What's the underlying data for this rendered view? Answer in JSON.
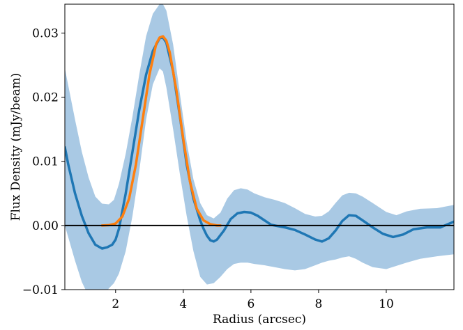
{
  "chart_data": {
    "type": "line",
    "xlabel": "Radius (arcsec)",
    "ylabel": "Flux Density (mJy/beam)",
    "xlim": [
      0.5,
      12.0
    ],
    "ylim": [
      -0.01,
      0.0345
    ],
    "xticks": [
      2,
      4,
      6,
      8,
      10
    ],
    "xtick_labels": [
      "2",
      "4",
      "6",
      "8",
      "10"
    ],
    "yticks": [
      -0.01,
      0.0,
      0.01,
      0.02,
      0.03
    ],
    "ytick_labels": [
      "−0.01",
      "0.00",
      "0.01",
      "0.02",
      "0.03"
    ],
    "grid": false,
    "legend": "none",
    "series": [
      {
        "kind": "band",
        "color": "#a9c9e4",
        "x": [
          0.5,
          0.8,
          1.0,
          1.2,
          1.4,
          1.6,
          1.8,
          1.95,
          2.1,
          2.3,
          2.5,
          2.7,
          2.9,
          3.1,
          3.3,
          3.4,
          3.5,
          3.7,
          3.9,
          4.1,
          4.3,
          4.5,
          4.7,
          4.9,
          5.1,
          5.3,
          5.5,
          5.7,
          5.9,
          6.1,
          6.4,
          6.7,
          7.0,
          7.3,
          7.6,
          7.9,
          8.1,
          8.3,
          8.5,
          8.7,
          8.9,
          9.1,
          9.3,
          9.6,
          10.0,
          10.3,
          10.6,
          11.0,
          11.5,
          12.0
        ],
        "upper": [
          0.0245,
          0.0165,
          0.0115,
          0.0075,
          0.0045,
          0.0034,
          0.0033,
          0.004,
          0.0065,
          0.0112,
          0.017,
          0.0235,
          0.0295,
          0.033,
          0.0345,
          0.0345,
          0.0335,
          0.0282,
          0.0205,
          0.013,
          0.0072,
          0.0035,
          0.0016,
          0.0011,
          0.002,
          0.0042,
          0.0055,
          0.0058,
          0.0056,
          0.005,
          0.0044,
          0.004,
          0.0035,
          0.0027,
          0.0018,
          0.0014,
          0.0015,
          0.0022,
          0.0035,
          0.0047,
          0.0051,
          0.005,
          0.0045,
          0.0035,
          0.0021,
          0.0016,
          0.0022,
          0.0026,
          0.0027,
          0.0032
        ],
        "lower": [
          0.0,
          -0.0055,
          -0.0088,
          -0.011,
          -0.0116,
          -0.0112,
          -0.0098,
          -0.009,
          -0.0075,
          -0.004,
          0.0015,
          0.0085,
          0.0165,
          0.022,
          0.0245,
          0.024,
          0.0215,
          0.015,
          0.008,
          0.0015,
          -0.004,
          -0.008,
          -0.0092,
          -0.009,
          -0.008,
          -0.0068,
          -0.006,
          -0.0058,
          -0.0058,
          -0.006,
          -0.0062,
          -0.0065,
          -0.0068,
          -0.007,
          -0.0068,
          -0.0062,
          -0.0058,
          -0.0055,
          -0.0053,
          -0.005,
          -0.0048,
          -0.0052,
          -0.0058,
          -0.0065,
          -0.0068,
          -0.0063,
          -0.0058,
          -0.0052,
          -0.0048,
          -0.0045
        ]
      },
      {
        "kind": "line",
        "color": "#1f77b4",
        "x": [
          0.5,
          0.6,
          0.8,
          1.0,
          1.2,
          1.4,
          1.6,
          1.75,
          1.9,
          2.0,
          2.1,
          2.3,
          2.5,
          2.7,
          2.9,
          3.1,
          3.3,
          3.4,
          3.5,
          3.7,
          3.9,
          4.1,
          4.3,
          4.5,
          4.6,
          4.7,
          4.8,
          4.9,
          5.0,
          5.2,
          5.4,
          5.6,
          5.8,
          6.0,
          6.2,
          6.4,
          6.6,
          6.8,
          7.0,
          7.3,
          7.6,
          7.9,
          8.1,
          8.3,
          8.5,
          8.7,
          8.9,
          9.1,
          9.3,
          9.6,
          9.9,
          10.2,
          10.5,
          10.8,
          11.2,
          11.6,
          12.0
        ],
        "values": [
          0.0122,
          0.0095,
          0.005,
          0.0015,
          -0.0012,
          -0.003,
          -0.0036,
          -0.0034,
          -0.003,
          -0.0022,
          -0.0005,
          0.005,
          0.0115,
          0.018,
          0.0235,
          0.0272,
          0.0292,
          0.0293,
          0.0285,
          0.024,
          0.017,
          0.0095,
          0.0042,
          0.0008,
          -0.0005,
          -0.0016,
          -0.0023,
          -0.0025,
          -0.0022,
          -0.0008,
          0.001,
          0.0019,
          0.0021,
          0.002,
          0.0015,
          0.0008,
          0.0001,
          -0.0001,
          -0.0003,
          -0.0007,
          -0.0014,
          -0.0022,
          -0.0025,
          -0.002,
          -0.0008,
          0.0007,
          0.0016,
          0.0015,
          0.0008,
          -0.0003,
          -0.0013,
          -0.0018,
          -0.0014,
          -0.0006,
          -0.0003,
          -0.0003,
          0.0006
        ]
      },
      {
        "kind": "line",
        "color": "#ff7f0e",
        "x": [
          1.6,
          1.8,
          2.0,
          2.2,
          2.4,
          2.6,
          2.8,
          3.0,
          3.2,
          3.3,
          3.4,
          3.5,
          3.6,
          3.8,
          4.0,
          4.2,
          4.4,
          4.6,
          4.8,
          5.0,
          5.1
        ],
        "values": [
          0.0,
          5e-05,
          0.0003,
          0.0014,
          0.0042,
          0.0095,
          0.0165,
          0.0235,
          0.0283,
          0.0293,
          0.0295,
          0.0288,
          0.027,
          0.021,
          0.0135,
          0.0068,
          0.0026,
          0.0008,
          0.0002,
          0.0,
          0.0
        ]
      },
      {
        "kind": "hline",
        "color": "#000000",
        "value": 0.0
      }
    ]
  }
}
